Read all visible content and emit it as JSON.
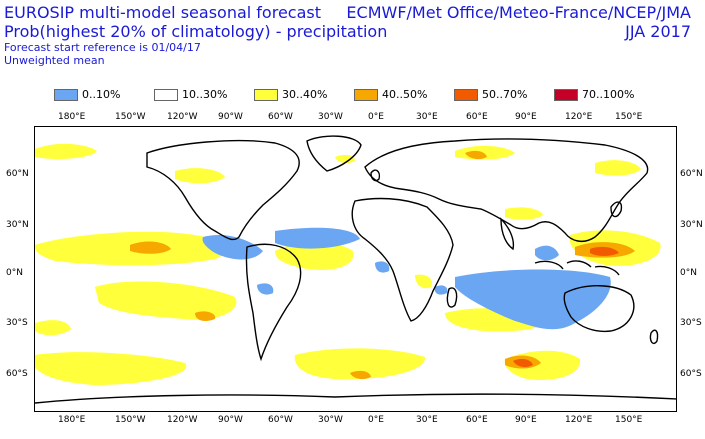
{
  "header": {
    "title": "EUROSIP multi-model seasonal forecast",
    "subtitle": "Prob(highest 20% of climatology) - precipitation",
    "forecast_ref": "Forecast start reference is 01/04/17",
    "mean_type": "Unweighted mean",
    "centres": "ECMWF/Met Office/Meteo-France/NCEP/JMA",
    "season": "JJA 2017"
  },
  "legend": [
    {
      "label": "0..10%",
      "color": "#6aa6f2"
    },
    {
      "label": "10..30%",
      "color": "#ffffff"
    },
    {
      "label": "30..40%",
      "color": "#ffff3c"
    },
    {
      "label": "40..50%",
      "color": "#f7a800"
    },
    {
      "label": "50..70%",
      "color": "#f25a00"
    },
    {
      "label": "70..100%",
      "color": "#c40028"
    }
  ],
  "axes": {
    "lon_labels": [
      "180°E",
      "150°W",
      "120°W",
      "90°W",
      "60°W",
      "30°W",
      "0°E",
      "30°E",
      "60°E",
      "90°E",
      "120°E",
      "150°E"
    ],
    "lat_labels": [
      "60°N",
      "30°N",
      "0°N",
      "30°S",
      "60°S"
    ]
  }
}
